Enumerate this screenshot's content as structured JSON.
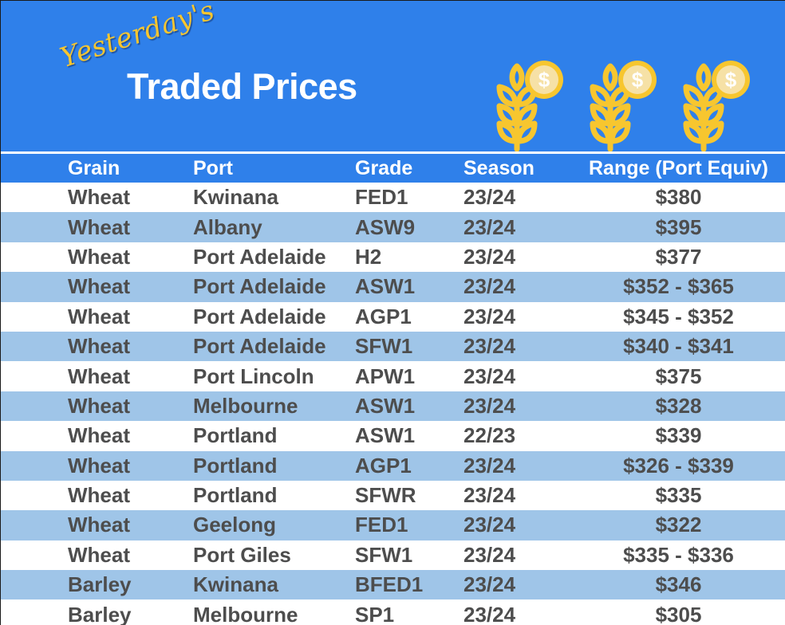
{
  "banner": {
    "script_title": "Yesterday's",
    "main_title": "Traded Prices",
    "icons": [
      "wheat-coin-icon",
      "wheat-coin-icon",
      "wheat-coin-icon"
    ],
    "background_color": "#2f80ea",
    "script_color": "#f7c62f",
    "icon_color": "#f7c62f"
  },
  "table": {
    "columns": [
      "Grain",
      "Port",
      "Grade",
      "Season",
      "Range (Port Equiv)"
    ],
    "header_color": "#2f80ea",
    "stripe_color": "#9fc5e8",
    "rows": [
      {
        "grain": "Wheat",
        "port": "Kwinana",
        "grade": "FED1",
        "season": "23/24",
        "range": "$380"
      },
      {
        "grain": "Wheat",
        "port": "Albany",
        "grade": "ASW9",
        "season": "23/24",
        "range": "$395"
      },
      {
        "grain": "Wheat",
        "port": "Port Adelaide",
        "grade": "H2",
        "season": "23/24",
        "range": "$377"
      },
      {
        "grain": "Wheat",
        "port": "Port Adelaide",
        "grade": "ASW1",
        "season": "23/24",
        "range": "$352 - $365"
      },
      {
        "grain": "Wheat",
        "port": "Port Adelaide",
        "grade": "AGP1",
        "season": "23/24",
        "range": "$345 - $352"
      },
      {
        "grain": "Wheat",
        "port": "Port Adelaide",
        "grade": "SFW1",
        "season": "23/24",
        "range": "$340 - $341"
      },
      {
        "grain": "Wheat",
        "port": "Port Lincoln",
        "grade": "APW1",
        "season": "23/24",
        "range": "$375"
      },
      {
        "grain": "Wheat",
        "port": "Melbourne",
        "grade": "ASW1",
        "season": "23/24",
        "range": "$328"
      },
      {
        "grain": "Wheat",
        "port": "Portland",
        "grade": "ASW1",
        "season": "22/23",
        "range": "$339"
      },
      {
        "grain": "Wheat",
        "port": "Portland",
        "grade": "AGP1",
        "season": "23/24",
        "range": "$326 - $339"
      },
      {
        "grain": "Wheat",
        "port": "Portland",
        "grade": "SFWR",
        "season": "23/24",
        "range": "$335"
      },
      {
        "grain": "Wheat",
        "port": "Geelong",
        "grade": "FED1",
        "season": "23/24",
        "range": "$322"
      },
      {
        "grain": "Wheat",
        "port": "Port Giles",
        "grade": "SFW1",
        "season": "23/24",
        "range": "$335 - $336"
      },
      {
        "grain": "Barley",
        "port": "Kwinana",
        "grade": "BFED1",
        "season": "23/24",
        "range": "$346"
      },
      {
        "grain": "Barley",
        "port": "Melbourne",
        "grade": "SP1",
        "season": "23/24",
        "range": "$305"
      }
    ]
  }
}
